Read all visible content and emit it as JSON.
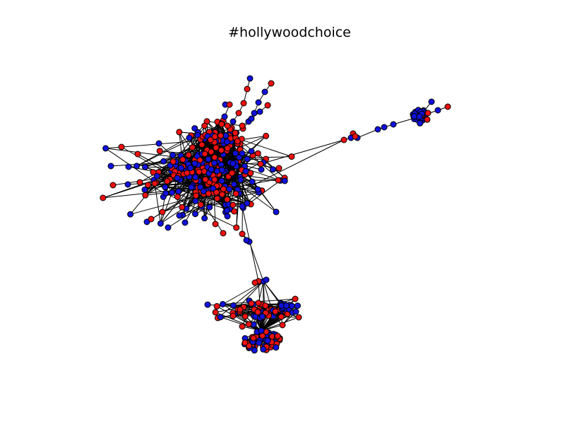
{
  "title": "#hollywoodchoice",
  "colors": {
    "node_red": "#ee1111",
    "node_blue": "#1111dd",
    "edge": "#000000",
    "background": "#ffffff"
  },
  "graph": {
    "type": "network",
    "node_colors": [
      "red",
      "blue"
    ],
    "clusters": [
      "main-cluster",
      "lower-cluster",
      "right-cluster"
    ]
  }
}
